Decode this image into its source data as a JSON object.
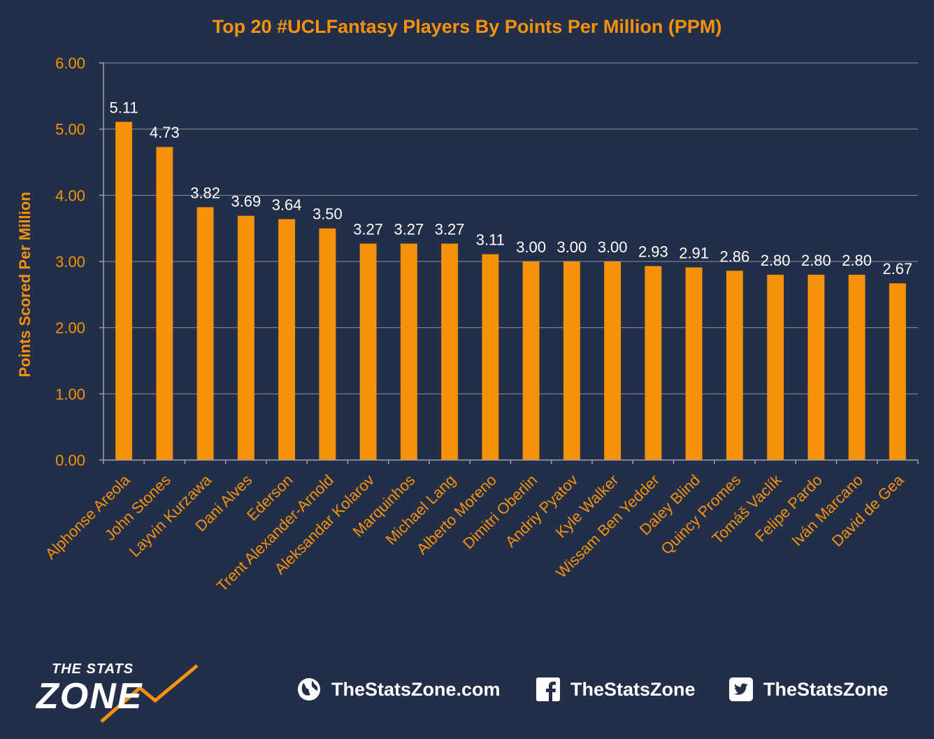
{
  "chart_data": {
    "type": "bar",
    "title": "Top 20 #UCLFantasy Players By Points Per Million (PPM)",
    "xlabel": "",
    "ylabel": "Points Scored Per Million",
    "ylim": [
      0,
      6
    ],
    "yticks": [
      "0.00",
      "1.00",
      "2.00",
      "3.00",
      "4.00",
      "5.00",
      "6.00"
    ],
    "grid": true,
    "categories": [
      "Alphonse Areola",
      "John Stones",
      "Layvin Kurzawa",
      "Dani Alves",
      "Ederson",
      "Trent Alexander-Arnold",
      "Aleksandar Kolarov",
      "Marquinhos",
      "Michael Lang",
      "Alberto Moreno",
      "Dimitri Oberlin",
      "Andriy Pyatov",
      "Kyle Walker",
      "Wissam Ben Yedder",
      "Daley Blind",
      "Quincy Promes",
      "Tomáš Vaclík",
      "Felipe Pardo",
      "Iván Marcano",
      "David de Gea"
    ],
    "values": [
      5.11,
      4.73,
      3.82,
      3.69,
      3.64,
      3.5,
      3.27,
      3.27,
      3.27,
      3.11,
      3.0,
      3.0,
      3.0,
      2.93,
      2.91,
      2.86,
      2.8,
      2.8,
      2.8,
      2.67
    ],
    "value_labels": [
      "5.11",
      "4.73",
      "3.82",
      "3.69",
      "3.64",
      "3.50",
      "3.27",
      "3.27",
      "3.27",
      "3.11",
      "3.00",
      "3.00",
      "3.00",
      "2.93",
      "2.91",
      "2.86",
      "2.80",
      "2.80",
      "2.80",
      "2.67"
    ],
    "colors": {
      "bar": "#f5920a",
      "text": "#f5920a",
      "background": "#232f48",
      "data_label": "#ffffff"
    }
  },
  "footer": {
    "logo_small": "THE STATS",
    "logo_big": "ZONE",
    "website": "TheStatsZone.com",
    "facebook": "TheStatsZone",
    "twitter": "TheStatsZone",
    "icons": [
      "globe-icon",
      "facebook-icon",
      "twitter-icon"
    ]
  }
}
